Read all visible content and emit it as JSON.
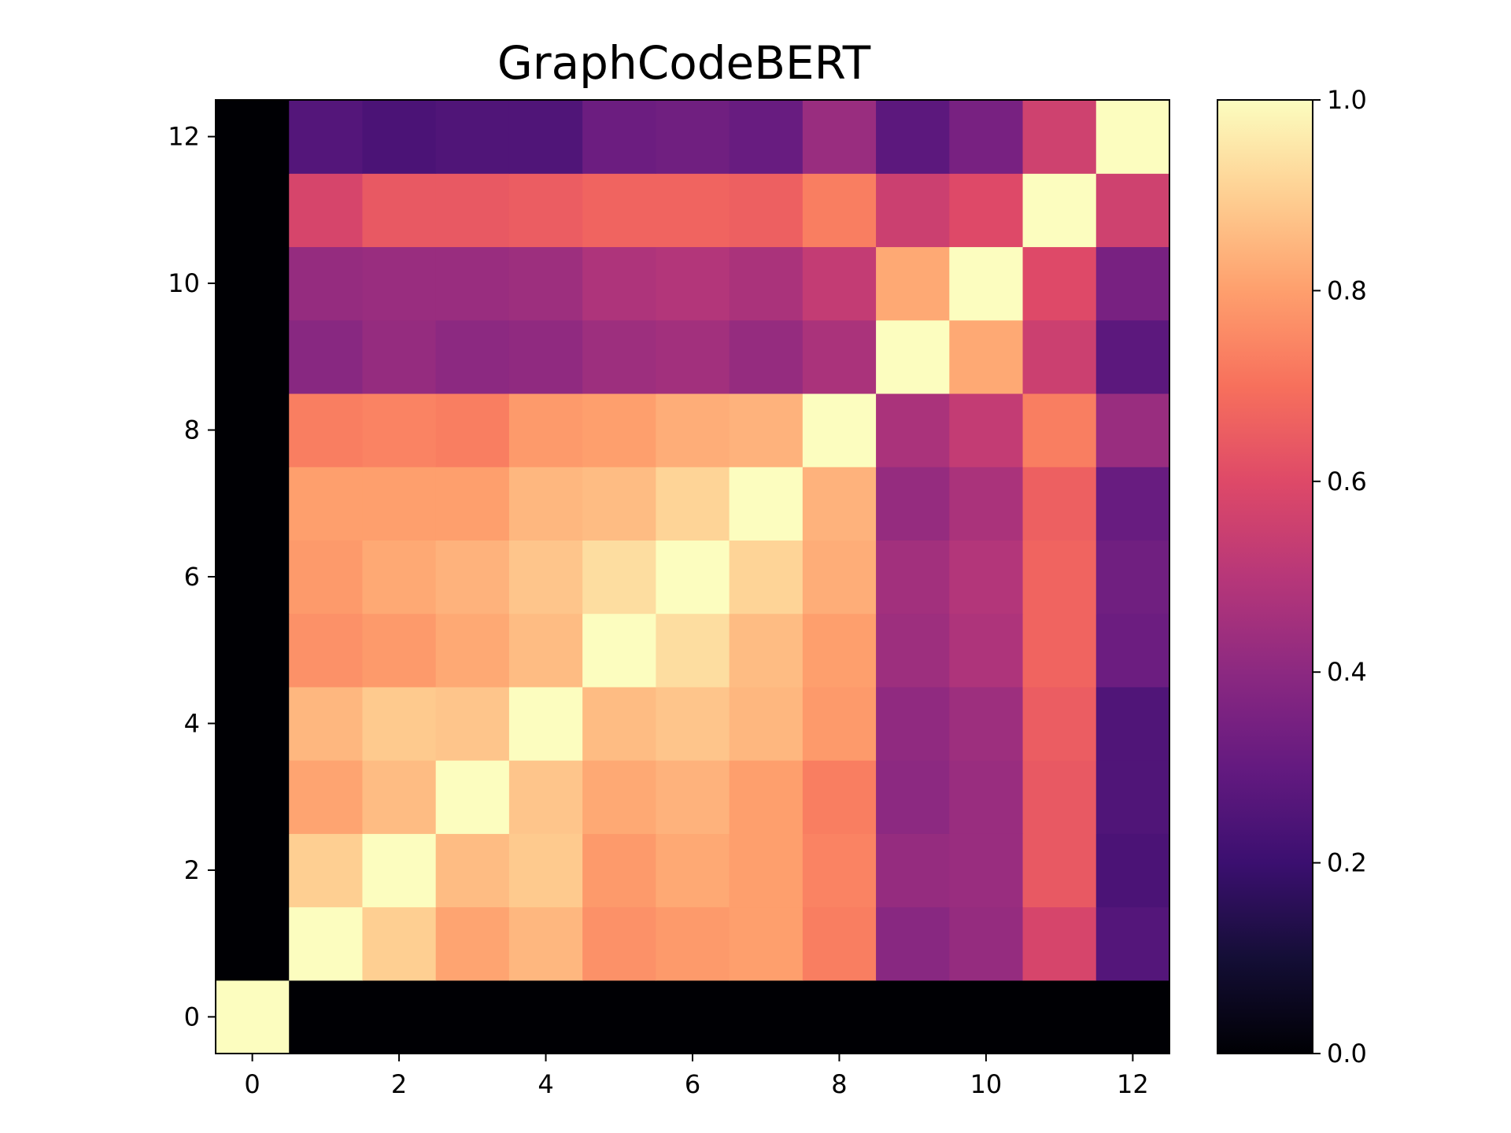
{
  "chart_data": {
    "type": "heatmap",
    "title": "GraphCodeBERT",
    "xlabel": "",
    "ylabel": "",
    "x_range": [
      -0.5,
      12.5
    ],
    "y_range": [
      -0.5,
      12.5
    ],
    "x_ticks": [
      "0",
      "2",
      "4",
      "6",
      "8",
      "10",
      "12"
    ],
    "y_ticks": [
      "0",
      "2",
      "4",
      "6",
      "8",
      "10",
      "12"
    ],
    "colormap": "magma",
    "clim": [
      0,
      1
    ],
    "colorbar_ticks": [
      "0.0",
      "0.2",
      "0.4",
      "0.6",
      "0.8",
      "1.0"
    ],
    "grid": false,
    "matrix": [
      [
        1.0,
        0.0,
        0.0,
        0.0,
        0.0,
        0.0,
        0.0,
        0.0,
        0.0,
        0.0,
        0.0,
        0.0,
        0.0
      ],
      [
        0.0,
        1.0,
        0.9,
        0.81,
        0.85,
        0.77,
        0.79,
        0.8,
        0.73,
        0.39,
        0.42,
        0.58,
        0.26
      ],
      [
        0.0,
        0.9,
        1.0,
        0.86,
        0.89,
        0.79,
        0.82,
        0.8,
        0.74,
        0.42,
        0.43,
        0.64,
        0.24
      ],
      [
        0.0,
        0.81,
        0.86,
        1.0,
        0.88,
        0.82,
        0.84,
        0.8,
        0.73,
        0.4,
        0.43,
        0.64,
        0.25
      ],
      [
        0.0,
        0.85,
        0.89,
        0.88,
        1.0,
        0.86,
        0.88,
        0.85,
        0.79,
        0.41,
        0.44,
        0.65,
        0.25
      ],
      [
        0.0,
        0.77,
        0.79,
        0.82,
        0.86,
        1.0,
        0.93,
        0.86,
        0.8,
        0.44,
        0.48,
        0.67,
        0.32
      ],
      [
        0.0,
        0.79,
        0.82,
        0.84,
        0.88,
        0.93,
        1.0,
        0.91,
        0.83,
        0.45,
        0.49,
        0.67,
        0.33
      ],
      [
        0.0,
        0.8,
        0.8,
        0.8,
        0.85,
        0.86,
        0.91,
        1.0,
        0.84,
        0.42,
        0.47,
        0.66,
        0.31
      ],
      [
        0.0,
        0.73,
        0.74,
        0.73,
        0.79,
        0.8,
        0.83,
        0.84,
        1.0,
        0.47,
        0.53,
        0.73,
        0.43
      ],
      [
        0.0,
        0.39,
        0.42,
        0.4,
        0.41,
        0.44,
        0.45,
        0.42,
        0.47,
        1.0,
        0.82,
        0.55,
        0.28
      ],
      [
        0.0,
        0.42,
        0.43,
        0.43,
        0.44,
        0.48,
        0.49,
        0.47,
        0.53,
        0.82,
        1.0,
        0.6,
        0.35
      ],
      [
        0.0,
        0.58,
        0.64,
        0.64,
        0.65,
        0.67,
        0.67,
        0.66,
        0.73,
        0.55,
        0.6,
        1.0,
        0.56
      ],
      [
        0.0,
        0.26,
        0.24,
        0.25,
        0.25,
        0.32,
        0.33,
        0.31,
        0.43,
        0.28,
        0.35,
        0.56,
        1.0
      ]
    ]
  }
}
